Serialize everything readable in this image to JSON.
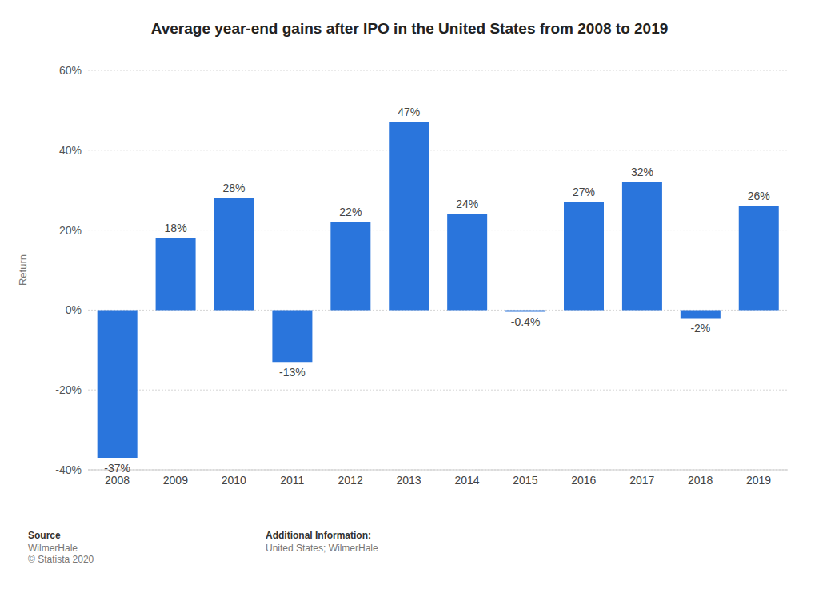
{
  "chart_data": {
    "type": "bar",
    "title": "Average year-end gains after IPO in the United States from 2008 to 2019",
    "y_label": "Return",
    "categories": [
      "2008",
      "2009",
      "2010",
      "2011",
      "2012",
      "2013",
      "2014",
      "2015",
      "2016",
      "2017",
      "2018",
      "2019"
    ],
    "values": [
      -37,
      18,
      28,
      -13,
      22,
      47,
      24,
      -0.4,
      27,
      32,
      -2,
      26
    ],
    "value_labels": [
      "-37%",
      "18%",
      "28%",
      "-13%",
      "22%",
      "47%",
      "24%",
      "-0.4%",
      "27%",
      "32%",
      "-2%",
      "26%"
    ],
    "color": "#2a75dc",
    "ylim": [
      -40,
      60
    ],
    "yticks": [
      {
        "value": -40,
        "label": "-40%"
      },
      {
        "value": -20,
        "label": "-20%"
      },
      {
        "value": 0,
        "label": "0%"
      },
      {
        "value": 20,
        "label": "20%"
      },
      {
        "value": 40,
        "label": "40%"
      },
      {
        "value": 60,
        "label": "60%"
      }
    ],
    "grid": true,
    "data_labels": true,
    "footer": {
      "source_label": "Source",
      "source": "WilmerHale",
      "copyright": "© Statista 2020",
      "info_label": "Additional Information:",
      "info": "United States; WilmerHale"
    }
  }
}
